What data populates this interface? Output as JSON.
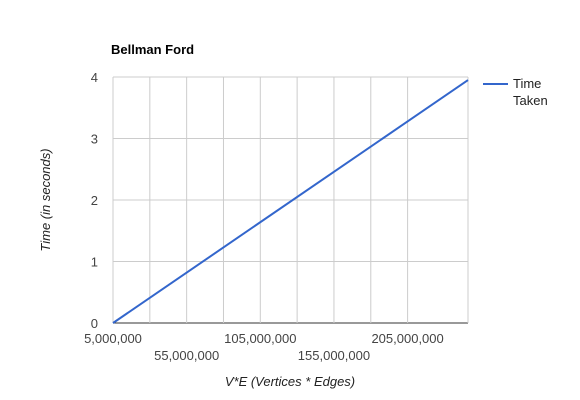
{
  "chart_data": {
    "type": "line",
    "title": "Bellman Ford",
    "xlabel": "V*E (Vertices * Edges)",
    "ylabel": "Time (in seconds)",
    "xlim": [
      5000000,
      246000000
    ],
    "ylim": [
      0,
      4
    ],
    "x_ticks": [
      5000000,
      55000000,
      105000000,
      155000000,
      205000000
    ],
    "x_tick_labels": [
      "5,000,000",
      "55,000,000",
      "105,000,000",
      "155,000,000",
      "205,000,000"
    ],
    "y_ticks": [
      0,
      1,
      2,
      3,
      4
    ],
    "y_tick_labels": [
      "0",
      "1",
      "2",
      "3",
      "4"
    ],
    "grid": true,
    "legend_position": "right",
    "series": [
      {
        "name": "Time Taken",
        "color": "#3366cc",
        "x": [
          5000000,
          246000000
        ],
        "y": [
          0,
          3.95
        ]
      }
    ]
  }
}
